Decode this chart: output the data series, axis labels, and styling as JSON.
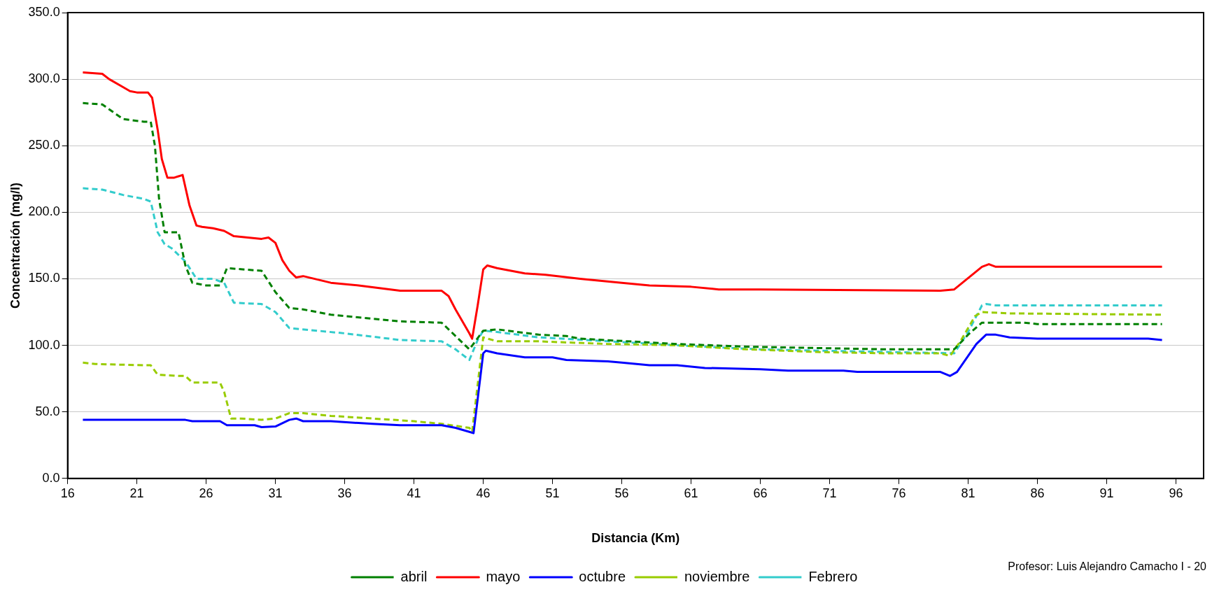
{
  "chart_data": {
    "type": "line",
    "xlabel": "Distancia (Km)",
    "ylabel": "Concentración (mg/l)",
    "xlim": [
      16,
      98
    ],
    "xticks": [
      16,
      21,
      26,
      31,
      36,
      41,
      46,
      51,
      56,
      61,
      66,
      71,
      76,
      81,
      86,
      91,
      96
    ],
    "ylim": [
      0,
      350
    ],
    "yticks": [
      {
        "value": 0,
        "label": "0.0"
      },
      {
        "value": 50,
        "label": "50.0"
      },
      {
        "value": 100,
        "label": "100.0"
      },
      {
        "value": 150,
        "label": "150.0"
      },
      {
        "value": 200,
        "label": "200.0"
      },
      {
        "value": 250,
        "label": "250.0"
      },
      {
        "value": 300,
        "label": "300.0"
      },
      {
        "value": 350,
        "label": "350.0"
      }
    ],
    "grid": "y",
    "legend": "bottom",
    "marker": "none",
    "annotations": [
      "Profesor: Luis Alejandro Camacho I - 20"
    ],
    "series": [
      {
        "name": "abril",
        "color": "#008000",
        "line_style": "dashed",
        "x": [
          17.1,
          18.5,
          20,
          21.5,
          22,
          22.3,
          22.6,
          23,
          24,
          24.5,
          25,
          26,
          27,
          27.5,
          30,
          31,
          32,
          33,
          35,
          38,
          40,
          43,
          45,
          46,
          47,
          50,
          52,
          53,
          60,
          65,
          70,
          75,
          80,
          81,
          82,
          85,
          86,
          95
        ],
        "values": [
          282,
          281,
          270,
          268,
          268,
          250,
          210,
          185,
          185,
          160,
          147,
          145,
          145,
          158,
          156,
          140,
          128,
          127,
          123,
          120,
          118,
          117,
          97,
          111,
          112,
          108,
          107,
          105,
          101,
          99,
          98,
          97,
          97,
          108,
          117,
          117,
          116,
          116
        ]
      },
      {
        "name": "mayo",
        "color": "#ff0000",
        "line_style": "solid",
        "x": [
          17.1,
          18.5,
          19,
          20,
          20.5,
          21,
          21.8,
          22.1,
          22.5,
          22.8,
          23.2,
          23.7,
          24.3,
          24.8,
          25.3,
          25.7,
          26.5,
          27.3,
          28,
          29,
          30,
          30.5,
          31,
          31.5,
          32,
          32.5,
          33,
          35,
          37,
          40,
          42,
          43,
          43.5,
          44,
          45,
          45.2,
          45.6,
          46,
          46.3,
          47,
          49,
          50.5,
          53,
          56,
          58,
          61,
          63,
          66,
          79,
          80,
          82,
          82.5,
          83,
          95
        ],
        "values": [
          305,
          304,
          300,
          294,
          291,
          290,
          290,
          286,
          262,
          240,
          226,
          226,
          228,
          205,
          190,
          189,
          188,
          186,
          182,
          181,
          180,
          181,
          177,
          164,
          156,
          151,
          152,
          147,
          145,
          141,
          141,
          141,
          137,
          127,
          109,
          105,
          130,
          157,
          160,
          158,
          154,
          153,
          150,
          147,
          145,
          144,
          142,
          142,
          141,
          142,
          159,
          161,
          159,
          159
        ]
      },
      {
        "name": "octubre",
        "color": "#0000ff",
        "line_style": "solid",
        "x": [
          17.1,
          24.5,
          25,
          27,
          27.5,
          29.5,
          30,
          31,
          32,
          32.5,
          33,
          35,
          38,
          40,
          43,
          44,
          45,
          45.3,
          46,
          46.2,
          47,
          49,
          51,
          52,
          55,
          56,
          58,
          60,
          62,
          66,
          68,
          72,
          73,
          79,
          79.7,
          80.2,
          81.6,
          82.3,
          83,
          84,
          86,
          94,
          95
        ],
        "values": [
          44,
          44,
          43,
          43,
          40,
          40,
          38.5,
          39,
          44,
          45,
          43,
          43,
          41,
          40,
          40,
          38,
          35,
          34,
          94,
          96,
          94,
          91,
          91,
          89,
          88,
          87,
          85,
          85,
          83,
          82,
          81,
          81,
          80,
          80,
          77,
          80,
          101,
          108,
          108,
          106,
          105,
          105,
          104
        ]
      },
      {
        "name": "noviembre",
        "color": "#99cc00",
        "line_style": "dashed",
        "x": [
          17.1,
          18,
          21.5,
          22,
          22.5,
          24,
          24.5,
          25,
          27,
          27.3,
          27.8,
          28.5,
          30,
          31,
          32,
          33,
          35,
          38,
          41,
          43,
          45,
          45.2,
          46,
          47,
          50,
          55,
          60,
          65,
          70,
          75,
          79,
          79.7,
          80.5,
          81.5,
          82,
          84,
          95
        ],
        "values": [
          87,
          86,
          85,
          85,
          78,
          77,
          77,
          72,
          72,
          65,
          45,
          45,
          44,
          45,
          49,
          49,
          47,
          45,
          43,
          41,
          38,
          35,
          106,
          103,
          103,
          101,
          100,
          97,
          95,
          94,
          94,
          92,
          104,
          122,
          125,
          124,
          123
        ]
      },
      {
        "name": "Febrero",
        "color": "#33cccc",
        "line_style": "dashed",
        "x": [
          17.1,
          18.5,
          20,
          21.5,
          22,
          22.5,
          23,
          23.5,
          24.5,
          25.3,
          26.5,
          27,
          27.3,
          28,
          30,
          31,
          32,
          34,
          36,
          40,
          43,
          44,
          45,
          45.6,
          46,
          47,
          50,
          55,
          60,
          66,
          70,
          75,
          80,
          81,
          82,
          82.3,
          83,
          95
        ],
        "values": [
          218,
          217,
          213,
          210,
          208,
          185,
          176,
          173,
          163,
          150,
          150,
          148,
          147,
          132,
          131,
          125,
          113,
          111,
          109,
          104,
          103,
          97,
          89,
          104,
          111,
          110,
          106,
          103,
          100,
          97,
          96,
          95,
          94,
          110,
          130,
          131,
          130,
          130
        ]
      }
    ]
  }
}
